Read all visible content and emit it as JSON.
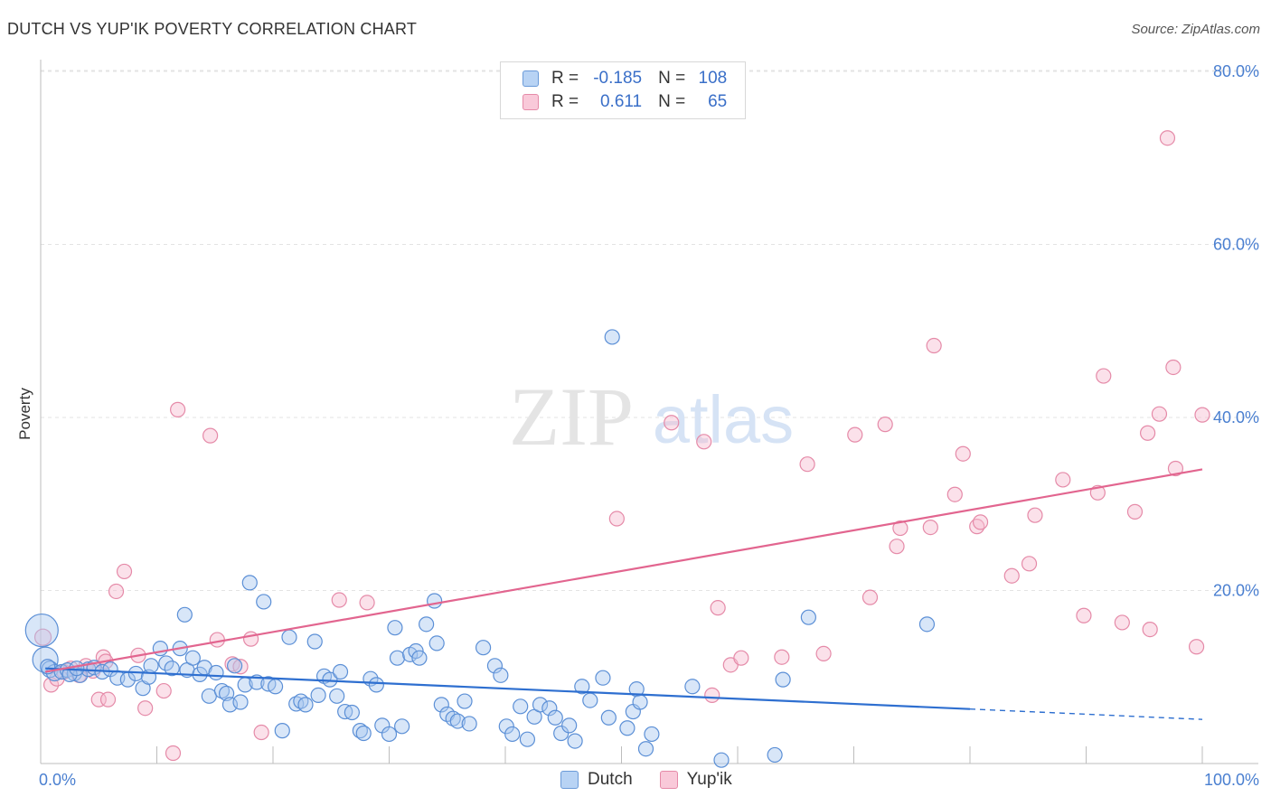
{
  "title": "DUTCH VS YUP'IK POVERTY CORRELATION CHART",
  "source": "Source: ZipAtlas.com",
  "watermark": {
    "zip": "ZIP",
    "atlas": "atlas"
  },
  "legend": {
    "rows": [
      {
        "r_label": "R =",
        "r_value": "-0.185",
        "n_label": "N =",
        "n_value": "108"
      },
      {
        "r_label": "R =",
        "r_value": "0.611",
        "n_label": "N =",
        "n_value": "65"
      }
    ]
  },
  "colors": {
    "dutch_fill": "#a9c8f0",
    "dutch_stroke": "#5b8fd6",
    "dutch_line": "#2e6fd0",
    "yupik_fill": "#f7bcd0",
    "yupik_stroke": "#e58aa8",
    "yupik_line": "#e2658f"
  },
  "chart_data": {
    "type": "scatter",
    "title": "DUTCH VS YUP'IK POVERTY CORRELATION CHART",
    "xlabel": "",
    "ylabel": "Poverty",
    "xlim": [
      0,
      100
    ],
    "ylim": [
      0,
      80
    ],
    "x_tick_labels": [
      "0.0%",
      "100.0%"
    ],
    "y_ticks": [
      20,
      40,
      60,
      80
    ],
    "y_tick_labels": [
      "20.0%",
      "40.0%",
      "60.0%",
      "80.0%"
    ],
    "grid": true,
    "legend_position": "top-center",
    "series": [
      {
        "name": "Dutch",
        "r": -0.185,
        "n": 108,
        "trend": {
          "x0": 0.4,
          "y0": 11.0,
          "x1": 80,
          "y1": 6.3,
          "dash_to_x": 100,
          "dash_to_y": 5.1
        },
        "points": [
          [
            0.1,
            15.4,
            18
          ],
          [
            0.4,
            12.0,
            14
          ],
          [
            0.8,
            10.9,
            9
          ],
          [
            1.2,
            10.5,
            9
          ],
          [
            1.8,
            10.6,
            8
          ],
          [
            2.3,
            10.8,
            8
          ],
          [
            2.9,
            10.4,
            8
          ],
          [
            3.4,
            10.2,
            8
          ],
          [
            4.1,
            10.9,
            8
          ],
          [
            4.6,
            11.1,
            8
          ],
          [
            5.3,
            10.6,
            8
          ],
          [
            6.0,
            10.9,
            8
          ],
          [
            6.6,
            9.9,
            8
          ],
          [
            7.5,
            9.7,
            8
          ],
          [
            8.2,
            10.4,
            8
          ],
          [
            8.8,
            8.7,
            8
          ],
          [
            9.3,
            10.0,
            8
          ],
          [
            9.5,
            11.3,
            8
          ],
          [
            10.3,
            13.3,
            8
          ],
          [
            10.8,
            11.6,
            8
          ],
          [
            11.3,
            11.0,
            8
          ],
          [
            12.0,
            13.3,
            8
          ],
          [
            12.6,
            10.8,
            8
          ],
          [
            12.4,
            17.2,
            8
          ],
          [
            13.1,
            12.2,
            8
          ],
          [
            13.7,
            10.3,
            8
          ],
          [
            14.1,
            11.1,
            8
          ],
          [
            14.5,
            7.8,
            8
          ],
          [
            15.1,
            10.5,
            8
          ],
          [
            15.6,
            8.4,
            8
          ],
          [
            16.0,
            8.1,
            8
          ],
          [
            16.3,
            6.8,
            8
          ],
          [
            16.7,
            11.3,
            8
          ],
          [
            17.2,
            7.1,
            8
          ],
          [
            17.6,
            9.1,
            8
          ],
          [
            18.0,
            20.9,
            8
          ],
          [
            18.6,
            9.4,
            8
          ],
          [
            19.2,
            18.7,
            8
          ],
          [
            19.6,
            9.2,
            8
          ],
          [
            20.2,
            8.9,
            8
          ],
          [
            20.8,
            3.8,
            8
          ],
          [
            21.4,
            14.6,
            8
          ],
          [
            22.0,
            6.9,
            8
          ],
          [
            22.4,
            7.2,
            8
          ],
          [
            22.8,
            6.8,
            8
          ],
          [
            23.6,
            14.1,
            8
          ],
          [
            23.9,
            7.9,
            8
          ],
          [
            24.4,
            10.1,
            8
          ],
          [
            24.9,
            9.7,
            8
          ],
          [
            25.5,
            7.8,
            8
          ],
          [
            25.8,
            10.6,
            8
          ],
          [
            26.2,
            6.0,
            8
          ],
          [
            26.8,
            5.9,
            8
          ],
          [
            27.5,
            3.8,
            8
          ],
          [
            27.8,
            3.5,
            8
          ],
          [
            28.4,
            9.8,
            8
          ],
          [
            28.9,
            9.1,
            8
          ],
          [
            29.4,
            4.4,
            8
          ],
          [
            30.0,
            3.4,
            8
          ],
          [
            30.5,
            15.7,
            8
          ],
          [
            30.7,
            12.2,
            8
          ],
          [
            31.1,
            4.3,
            8
          ],
          [
            31.8,
            12.6,
            8
          ],
          [
            32.3,
            13.0,
            8
          ],
          [
            32.6,
            12.2,
            8
          ],
          [
            33.2,
            16.1,
            8
          ],
          [
            33.9,
            18.8,
            8
          ],
          [
            34.1,
            13.9,
            8
          ],
          [
            34.5,
            6.8,
            8
          ],
          [
            35.0,
            5.7,
            8
          ],
          [
            35.5,
            5.2,
            8
          ],
          [
            35.9,
            4.9,
            8
          ],
          [
            36.5,
            7.2,
            8
          ],
          [
            36.9,
            4.6,
            8
          ],
          [
            38.1,
            13.4,
            8
          ],
          [
            39.1,
            11.3,
            8
          ],
          [
            39.6,
            10.2,
            8
          ],
          [
            40.1,
            4.3,
            8
          ],
          [
            40.6,
            3.4,
            8
          ],
          [
            41.3,
            6.6,
            8
          ],
          [
            41.9,
            2.8,
            8
          ],
          [
            42.5,
            5.4,
            8
          ],
          [
            43.0,
            6.8,
            8
          ],
          [
            43.8,
            6.4,
            8
          ],
          [
            44.3,
            5.3,
            8
          ],
          [
            44.8,
            3.5,
            8
          ],
          [
            45.5,
            4.4,
            8
          ],
          [
            46.0,
            2.6,
            8
          ],
          [
            46.6,
            8.9,
            8
          ],
          [
            47.3,
            7.3,
            8
          ],
          [
            48.4,
            9.9,
            8
          ],
          [
            48.9,
            5.3,
            8
          ],
          [
            49.2,
            49.3,
            8
          ],
          [
            50.5,
            4.1,
            8
          ],
          [
            51.0,
            6.0,
            8
          ],
          [
            51.3,
            8.6,
            8
          ],
          [
            51.6,
            7.1,
            8
          ],
          [
            52.1,
            1.7,
            8
          ],
          [
            52.6,
            3.4,
            8
          ],
          [
            56.1,
            8.9,
            8
          ],
          [
            58.6,
            0.4,
            8
          ],
          [
            63.2,
            1.0,
            8
          ],
          [
            63.9,
            9.7,
            8
          ],
          [
            66.1,
            16.9,
            8
          ],
          [
            76.3,
            16.1,
            8
          ],
          [
            0.6,
            11.2,
            8
          ],
          [
            2.5,
            10.3,
            8
          ],
          [
            3.1,
            11.0,
            8
          ]
        ]
      },
      {
        "name": "Yup'ik",
        "r": 0.611,
        "n": 65,
        "trend": {
          "x0": 0.4,
          "y0": 10.6,
          "x1": 100,
          "y1": 34.0
        },
        "points": [
          [
            0.2,
            14.6,
            9
          ],
          [
            0.9,
            9.1,
            8
          ],
          [
            1.4,
            9.8,
            8
          ],
          [
            2.0,
            10.6,
            8
          ],
          [
            2.6,
            11.0,
            8
          ],
          [
            3.3,
            10.2,
            8
          ],
          [
            3.9,
            11.3,
            8
          ],
          [
            4.5,
            10.7,
            8
          ],
          [
            5.0,
            7.4,
            8
          ],
          [
            5.4,
            12.3,
            8
          ],
          [
            5.8,
            7.4,
            8
          ],
          [
            6.5,
            19.9,
            8
          ],
          [
            7.2,
            22.2,
            8
          ],
          [
            8.4,
            12.5,
            8
          ],
          [
            9.0,
            6.4,
            8
          ],
          [
            10.6,
            8.4,
            8
          ],
          [
            11.4,
            1.2,
            8
          ],
          [
            11.8,
            40.9,
            8
          ],
          [
            14.6,
            37.9,
            8
          ],
          [
            15.2,
            14.3,
            8
          ],
          [
            16.5,
            11.5,
            8
          ],
          [
            17.2,
            11.2,
            8
          ],
          [
            18.1,
            14.4,
            8
          ],
          [
            19.0,
            3.6,
            8
          ],
          [
            25.7,
            18.9,
            8
          ],
          [
            28.1,
            18.6,
            8
          ],
          [
            49.6,
            28.3,
            8
          ],
          [
            54.3,
            39.4,
            8
          ],
          [
            57.1,
            37.2,
            8
          ],
          [
            57.8,
            7.9,
            8
          ],
          [
            58.3,
            18.0,
            8
          ],
          [
            59.4,
            11.4,
            8
          ],
          [
            60.3,
            12.2,
            8
          ],
          [
            63.8,
            12.3,
            8
          ],
          [
            66.0,
            34.6,
            8
          ],
          [
            67.4,
            12.7,
            8
          ],
          [
            70.1,
            38.0,
            8
          ],
          [
            71.4,
            19.2,
            8
          ],
          [
            72.7,
            39.2,
            8
          ],
          [
            73.7,
            25.1,
            8
          ],
          [
            74.0,
            27.2,
            8
          ],
          [
            76.6,
            27.3,
            8
          ],
          [
            76.9,
            48.3,
            8
          ],
          [
            78.7,
            31.1,
            8
          ],
          [
            79.4,
            35.8,
            8
          ],
          [
            80.6,
            27.4,
            8
          ],
          [
            80.9,
            27.9,
            8
          ],
          [
            83.6,
            21.7,
            8
          ],
          [
            85.1,
            23.1,
            8
          ],
          [
            85.6,
            28.7,
            8
          ],
          [
            88.0,
            32.8,
            8
          ],
          [
            89.8,
            17.1,
            8
          ],
          [
            91.0,
            31.3,
            8
          ],
          [
            91.5,
            44.8,
            8
          ],
          [
            93.1,
            16.3,
            8
          ],
          [
            94.2,
            29.1,
            8
          ],
          [
            95.3,
            38.2,
            8
          ],
          [
            95.5,
            15.5,
            8
          ],
          [
            96.3,
            40.4,
            8
          ],
          [
            97.0,
            72.3,
            8
          ],
          [
            97.5,
            45.8,
            8
          ],
          [
            97.7,
            34.1,
            8
          ],
          [
            99.5,
            13.5,
            8
          ],
          [
            100.0,
            40.3,
            8
          ],
          [
            5.6,
            11.8,
            8
          ]
        ]
      }
    ]
  },
  "bottom_legend": [
    {
      "label": "Dutch"
    },
    {
      "label": "Yup'ik"
    }
  ]
}
